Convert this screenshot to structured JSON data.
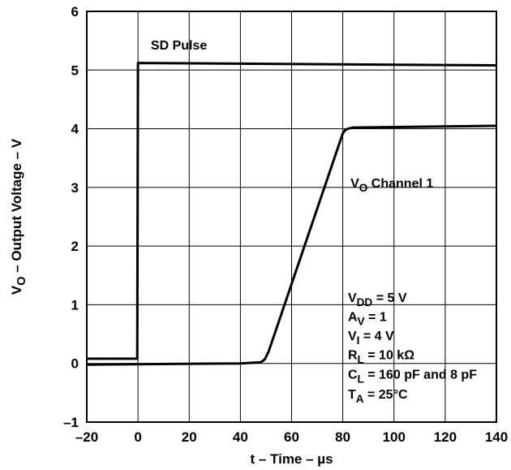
{
  "chart_data": {
    "type": "line",
    "title": "",
    "xlabel": "t – Time – µs",
    "ylabel": "V_O – Output Voltage – V",
    "xlim": [
      -20,
      140
    ],
    "ylim": [
      -1,
      6
    ],
    "xticks": [
      -20,
      0,
      20,
      40,
      60,
      80,
      100,
      120,
      140
    ],
    "yticks": [
      -1,
      0,
      1,
      2,
      3,
      4,
      5,
      6
    ],
    "xtick_labels": [
      "–20",
      "0",
      "20",
      "40",
      "60",
      "80",
      "100",
      "120",
      "140"
    ],
    "ytick_labels": [
      "–1",
      "0",
      "1",
      "2",
      "3",
      "4",
      "5",
      "6"
    ],
    "grid": true,
    "series": [
      {
        "name": "SD Pulse",
        "x": [
          -20,
          -0.3,
          0,
          140
        ],
        "y": [
          0.08,
          0.08,
          5.12,
          5.08
        ]
      },
      {
        "name": "V_O Channel 1",
        "x": [
          -20,
          40,
          48,
          49.5,
          51,
          80,
          81,
          82,
          84,
          140
        ],
        "y": [
          -0.02,
          0.0,
          0.02,
          0.07,
          0.2,
          3.92,
          3.98,
          4.0,
          4.02,
          4.05
        ]
      }
    ],
    "annotations": [
      {
        "parts": [
          [
            "SD Pulse",
            "n"
          ]
        ],
        "data_x": 5,
        "data_y": 5.35
      },
      {
        "parts": [
          [
            "V",
            "n"
          ],
          [
            "O",
            "s"
          ],
          [
            " Channel 1",
            "n"
          ]
        ],
        "data_x": 83,
        "data_y": 3.0
      },
      {
        "parts": [
          [
            "V",
            "n"
          ],
          [
            "DD",
            "s"
          ],
          [
            " = 5 V",
            "n"
          ]
        ],
        "data_x": 82,
        "data_y": 1.05
      },
      {
        "parts": [
          [
            "A",
            "n"
          ],
          [
            "V",
            "s"
          ],
          [
            " = 1",
            "n"
          ]
        ],
        "data_x": 82,
        "data_y": 0.72
      },
      {
        "parts": [
          [
            "V",
            "n"
          ],
          [
            "I",
            "s"
          ],
          [
            " = 4 V",
            "n"
          ]
        ],
        "data_x": 82,
        "data_y": 0.4
      },
      {
        "parts": [
          [
            "R",
            "n"
          ],
          [
            "L",
            "s"
          ],
          [
            " = 10 kΩ",
            "n"
          ]
        ],
        "data_x": 82,
        "data_y": 0.07
      },
      {
        "parts": [
          [
            "C",
            "n"
          ],
          [
            "L",
            "s"
          ],
          [
            " = 160 pF and 8 pF",
            "n"
          ]
        ],
        "data_x": 82,
        "data_y": -0.26
      },
      {
        "parts": [
          [
            "T",
            "n"
          ],
          [
            "A",
            "s"
          ],
          [
            " = 25°C",
            "n"
          ]
        ],
        "data_x": 82,
        "data_y": -0.6
      }
    ]
  }
}
